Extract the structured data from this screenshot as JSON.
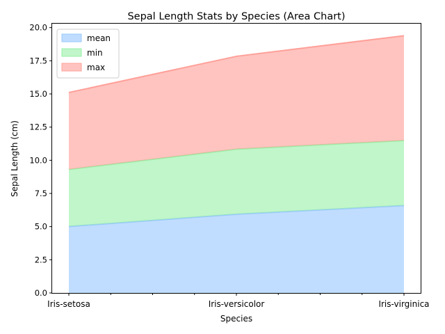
{
  "chart_data": {
    "type": "area",
    "stacked": true,
    "title": "Sepal Length Stats by Species (Area Chart)",
    "xlabel": "Species",
    "ylabel": "Sepal Length (cm)",
    "categories": [
      "Iris-setosa",
      "Iris-versicolor",
      "Iris-virginica"
    ],
    "series": [
      {
        "name": "mean",
        "values": [
          5.006,
          5.936,
          6.588
        ],
        "color": "#99c8ff"
      },
      {
        "name": "min",
        "values": [
          4.3,
          4.9,
          4.9
        ],
        "color": "#99f0a8"
      },
      {
        "name": "max",
        "values": [
          5.8,
          7.0,
          7.9
        ],
        "color": "#ffa099"
      }
    ],
    "ylim": [
      0,
      20.35
    ],
    "yticks": [
      "0.0",
      "2.5",
      "5.0",
      "7.5",
      "10.0",
      "12.5",
      "15.0",
      "17.5",
      "20.0"
    ],
    "legend_position": "top-left",
    "grid": false
  }
}
